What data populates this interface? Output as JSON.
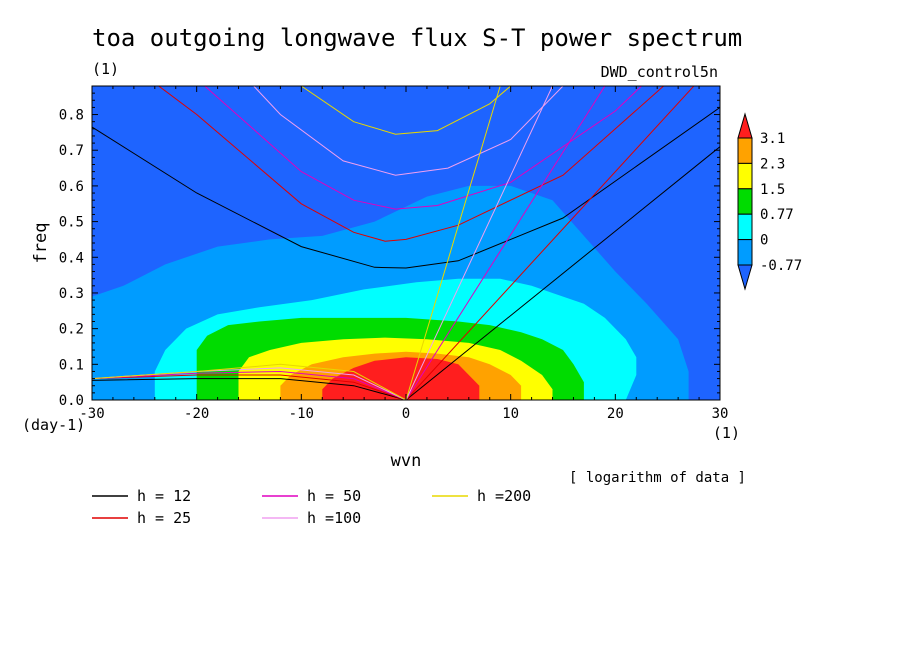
{
  "chart_data": {
    "type": "heatmap",
    "title": "toa outgoing longwave flux S-T power spectrum",
    "subtitle_left": "(1)",
    "subtitle_right": "DWD_control5n",
    "xlabel": "wvn",
    "ylabel": "freq",
    "x_unit": "(1)",
    "y_unit": "(day-1)",
    "xlim": [
      -30,
      30
    ],
    "ylim": [
      0,
      0.88
    ],
    "x_ticks": [
      -30,
      -20,
      -10,
      0,
      10,
      20,
      30
    ],
    "x_tick_labels": [
      "-30",
      "-20",
      "-10",
      "0",
      "10",
      "20",
      "30"
    ],
    "y_ticks": [
      0,
      0.1,
      0.2,
      0.3,
      0.4,
      0.5,
      0.6,
      0.7,
      0.8
    ],
    "y_tick_labels": [
      "0.0",
      "0.1",
      "0.2",
      "0.3",
      "0.4",
      "0.5",
      "0.6",
      "0.7",
      "0.8"
    ],
    "note": "[ logarithm of data ]",
    "colorbar": {
      "levels": [
        "3.1",
        "2.3",
        "1.5",
        "0.77",
        "0",
        "-0.77"
      ],
      "colors": [
        "#ff1e1e",
        "#ffa200",
        "#ffff00",
        "#00dc00",
        "#00ffff",
        "#009cff",
        "#1e64ff"
      ]
    },
    "filled_contours": [
      {
        "level": -0.77,
        "color": "#009cff",
        "region": [
          [
            -30,
            0
          ],
          [
            -30,
            0.29
          ],
          [
            -27,
            0.32
          ],
          [
            -23,
            0.38
          ],
          [
            -18,
            0.43
          ],
          [
            -13,
            0.45
          ],
          [
            -8,
            0.46
          ],
          [
            -3,
            0.5
          ],
          [
            2,
            0.57
          ],
          [
            6,
            0.6
          ],
          [
            10,
            0.6
          ],
          [
            14,
            0.56
          ],
          [
            17,
            0.46
          ],
          [
            20,
            0.36
          ],
          [
            23,
            0.27
          ],
          [
            26,
            0.17
          ],
          [
            27,
            0.08
          ],
          [
            27,
            0
          ]
        ]
      },
      {
        "level": 0,
        "color": "#00ffff",
        "region": [
          [
            -24,
            0
          ],
          [
            -24,
            0.08
          ],
          [
            -23,
            0.14
          ],
          [
            -21,
            0.2
          ],
          [
            -18,
            0.24
          ],
          [
            -14,
            0.26
          ],
          [
            -9,
            0.28
          ],
          [
            -4,
            0.31
          ],
          [
            1,
            0.33
          ],
          [
            5,
            0.34
          ],
          [
            9,
            0.34
          ],
          [
            12,
            0.32
          ],
          [
            14,
            0.3
          ],
          [
            17,
            0.27
          ],
          [
            19,
            0.23
          ],
          [
            21,
            0.17
          ],
          [
            22,
            0.12
          ],
          [
            22,
            0.07
          ],
          [
            21,
            0
          ]
        ]
      },
      {
        "level": 0.77,
        "color": "#00dc00",
        "region": [
          [
            -20,
            0
          ],
          [
            -20,
            0.14
          ],
          [
            -19,
            0.18
          ],
          [
            -17,
            0.21
          ],
          [
            -14,
            0.22
          ],
          [
            -10,
            0.23
          ],
          [
            -5,
            0.23
          ],
          [
            0,
            0.23
          ],
          [
            5,
            0.22
          ],
          [
            8,
            0.21
          ],
          [
            11,
            0.19
          ],
          [
            13,
            0.17
          ],
          [
            15,
            0.14
          ],
          [
            16,
            0.1
          ],
          [
            17,
            0.05
          ],
          [
            17,
            0
          ]
        ]
      },
      {
        "level": 1.5,
        "color": "#ffff00",
        "region": [
          [
            -16,
            0
          ],
          [
            -16,
            0.08
          ],
          [
            -15,
            0.12
          ],
          [
            -13,
            0.14
          ],
          [
            -10,
            0.16
          ],
          [
            -6,
            0.17
          ],
          [
            -2,
            0.175
          ],
          [
            2,
            0.17
          ],
          [
            6,
            0.16
          ],
          [
            9,
            0.14
          ],
          [
            11,
            0.11
          ],
          [
            13,
            0.07
          ],
          [
            14,
            0.03
          ],
          [
            14,
            0
          ]
        ]
      },
      {
        "level": 2.3,
        "color": "#ffa200",
        "region": [
          [
            -12,
            0
          ],
          [
            -12,
            0.04
          ],
          [
            -11,
            0.07
          ],
          [
            -9,
            0.1
          ],
          [
            -6,
            0.12
          ],
          [
            -3,
            0.13
          ],
          [
            0,
            0.135
          ],
          [
            3,
            0.13
          ],
          [
            6,
            0.12
          ],
          [
            8,
            0.1
          ],
          [
            10,
            0.07
          ],
          [
            11,
            0.04
          ],
          [
            11,
            0
          ]
        ]
      },
      {
        "level": 3.1,
        "color": "#ff1e1e",
        "region": [
          [
            -8,
            0
          ],
          [
            -8,
            0.03
          ],
          [
            -7,
            0.06
          ],
          [
            -5,
            0.09
          ],
          [
            -3,
            0.11
          ],
          [
            0,
            0.12
          ],
          [
            3,
            0.115
          ],
          [
            5,
            0.1
          ],
          [
            6,
            0.07
          ],
          [
            7,
            0.04
          ],
          [
            7,
            0
          ]
        ]
      }
    ],
    "dispersion_legend": [
      {
        "label": "h = 12",
        "color": "#000000"
      },
      {
        "label": "h = 25",
        "color": "#e00000"
      },
      {
        "label": "h = 50",
        "color": "#e000c0"
      },
      {
        "label": "h =100",
        "color": "#f0a0f0"
      },
      {
        "label": "h =200",
        "color": "#e8d800"
      }
    ],
    "dispersion_curves": [
      {
        "h": 12,
        "color": "#000000",
        "kelvin": [
          [
            0,
            0
          ],
          [
            30,
            0.71
          ]
        ],
        "ig": [
          [
            -30,
            0.765
          ],
          [
            -20,
            0.58
          ],
          [
            -10,
            0.43
          ],
          [
            -3,
            0.372
          ],
          [
            0,
            0.37
          ],
          [
            5,
            0.39
          ],
          [
            15,
            0.51
          ],
          [
            30,
            0.82
          ]
        ],
        "er": [
          [
            -30,
            0.055
          ],
          [
            -20,
            0.06
          ],
          [
            -12,
            0.06
          ],
          [
            -5,
            0.04
          ],
          [
            0,
            0
          ]
        ]
      },
      {
        "h": 25,
        "color": "#e00000",
        "kelvin": [
          [
            0,
            0
          ],
          [
            30,
            0.96
          ]
        ],
        "ig": [
          [
            -30,
            1.02
          ],
          [
            -20,
            0.8
          ],
          [
            -10,
            0.55
          ],
          [
            -5,
            0.47
          ],
          [
            -2,
            0.445
          ],
          [
            0,
            0.45
          ],
          [
            5,
            0.49
          ],
          [
            15,
            0.63
          ],
          [
            30,
            1.02
          ]
        ],
        "er": [
          [
            -30,
            0.06
          ],
          [
            -20,
            0.07
          ],
          [
            -12,
            0.07
          ],
          [
            -5,
            0.05
          ],
          [
            0,
            0
          ]
        ]
      },
      {
        "h": 50,
        "color": "#e000c0",
        "kelvin": [
          [
            0,
            0
          ],
          [
            19,
            0.88
          ]
        ],
        "ig": [
          [
            -30,
            1.15
          ],
          [
            -20,
            0.9
          ],
          [
            -10,
            0.64
          ],
          [
            -5,
            0.56
          ],
          [
            -1,
            0.535
          ],
          [
            3,
            0.545
          ],
          [
            10,
            0.61
          ],
          [
            20,
            0.81
          ],
          [
            25,
            0.95
          ]
        ],
        "er": [
          [
            -30,
            0.06
          ],
          [
            -20,
            0.075
          ],
          [
            -12,
            0.08
          ],
          [
            -5,
            0.06
          ],
          [
            0,
            0
          ]
        ]
      },
      {
        "h": 100,
        "color": "#f0a0f0",
        "kelvin": [
          [
            0,
            0
          ],
          [
            14,
            0.88
          ]
        ],
        "ig": [
          [
            -20,
            1.05
          ],
          [
            -12,
            0.8
          ],
          [
            -6,
            0.67
          ],
          [
            -1,
            0.63
          ],
          [
            4,
            0.65
          ],
          [
            10,
            0.73
          ],
          [
            15,
            0.88
          ]
        ],
        "er": [
          [
            -30,
            0.06
          ],
          [
            -20,
            0.08
          ],
          [
            -12,
            0.09
          ],
          [
            -5,
            0.07
          ],
          [
            0,
            0
          ]
        ]
      },
      {
        "h": 200,
        "color": "#e8d800",
        "kelvin": [
          [
            0,
            0
          ],
          [
            9,
            0.88
          ]
        ],
        "ig": [
          [
            -10,
            0.88
          ],
          [
            -5,
            0.78
          ],
          [
            -1,
            0.745
          ],
          [
            3,
            0.755
          ],
          [
            8,
            0.83
          ],
          [
            10,
            0.88
          ]
        ],
        "er": [
          [
            -30,
            0.06
          ],
          [
            -20,
            0.08
          ],
          [
            -12,
            0.1
          ],
          [
            -5,
            0.08
          ],
          [
            0,
            0
          ]
        ]
      }
    ]
  }
}
